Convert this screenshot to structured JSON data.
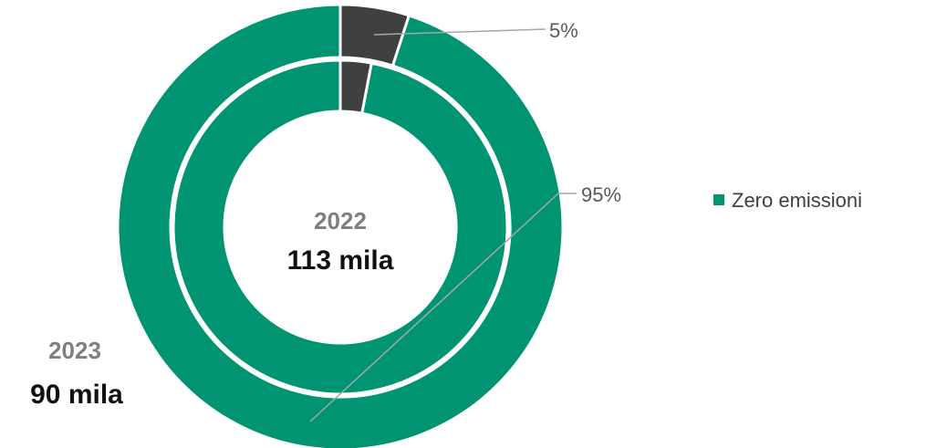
{
  "chart_data": {
    "type": "pie",
    "variant": "nested-donut",
    "legend": {
      "position": "right",
      "entries": [
        {
          "label": "Zero emissioni",
          "color": "#009473"
        }
      ]
    },
    "rings": [
      {
        "ring": "inner",
        "year": "2022",
        "total": "113 mila",
        "slices": [
          {
            "category": "other",
            "value": 3,
            "color": "#404040"
          },
          {
            "category": "Zero emissioni",
            "value": 97,
            "color": "#009473"
          }
        ]
      },
      {
        "ring": "outer",
        "year": "2023",
        "total": "90 mila",
        "slices": [
          {
            "category": "other",
            "value": 5,
            "label": "5%",
            "color": "#404040"
          },
          {
            "category": "Zero emissioni",
            "value": 95,
            "label": "95%",
            "color": "#009473"
          }
        ]
      }
    ]
  }
}
